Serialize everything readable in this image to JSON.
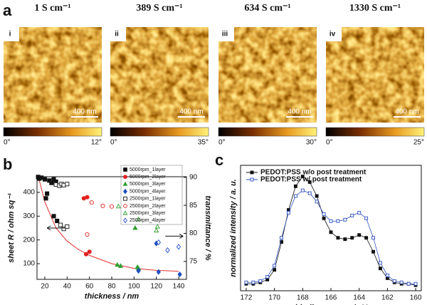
{
  "panel_a": {
    "label": "a",
    "images": [
      {
        "title": "1 S cm⁻¹",
        "tag": "i",
        "scale_bar": "400 nm",
        "colorbar": {
          "min": "0°",
          "max": "12°"
        }
      },
      {
        "title": "389 S cm⁻¹",
        "tag": "ii",
        "scale_bar": "400 nm",
        "colorbar": {
          "min": "0°",
          "max": "35°"
        }
      },
      {
        "title": "634 S cm⁻¹",
        "tag": "iii",
        "scale_bar": "400 nm",
        "colorbar": {
          "min": "0°",
          "max": "30°"
        }
      },
      {
        "title": "1330 S cm⁻¹",
        "tag": "iv",
        "scale_bar": "400 nm",
        "colorbar": {
          "min": "0°",
          "max": "25°"
        }
      }
    ]
  },
  "chart_data": [
    {
      "type": "scatter",
      "panel_label": "b",
      "x_label": "thickness / nm",
      "y_label": "sheet R / ohm sq⁻¹",
      "y2_label": "transmittance / %",
      "xlim": [
        13,
        147
      ],
      "xticks": [
        20,
        40,
        60,
        80,
        100,
        120,
        140
      ],
      "ylim": [
        34,
        466
      ],
      "yticks": [
        100,
        200,
        300,
        400
      ],
      "y2lim": [
        71.8,
        90.1
      ],
      "y2ticks": [
        75,
        80,
        85,
        90
      ],
      "series": [
        {
          "name": "5000rpm_1layer",
          "color": "#111111",
          "marker": "square",
          "filled": true,
          "x": [
            14,
            15,
            17,
            20,
            22,
            24,
            26,
            28,
            30,
            21,
            28,
            31
          ],
          "values": [
            465,
            458,
            462,
            455,
            395,
            450,
            440,
            455,
            445,
            375,
            300,
            280
          ]
        },
        {
          "name": "5000rpm_2layer",
          "color": "#e02020",
          "marker": "circle",
          "filled": true,
          "x": [
            55,
            58,
            57,
            60
          ],
          "values": [
            375,
            380,
            140,
            150
          ]
        },
        {
          "name": "5000rpm_3layer",
          "color": "#30a030",
          "marker": "triangle",
          "filled": true,
          "x": [
            85,
            88,
            101,
            103,
            104
          ],
          "values": [
            95,
            90,
            250,
            85,
            80
          ]
        },
        {
          "name": "5000rpm_4layer",
          "color": "#2050c0",
          "marker": "diamond",
          "filled": true,
          "x": [
            104,
            120,
            122,
            141
          ],
          "values": [
            70,
            185,
            65,
            55
          ]
        },
        {
          "name": "2500rpm_1layer",
          "color": "#111111",
          "marker": "square",
          "filled": false,
          "axis": "y2",
          "x": [
            30,
            33,
            35,
            37,
            40,
            34,
            37,
            40
          ],
          "values": [
            88.7,
            88.5,
            88.8,
            88.6,
            88.8,
            81.5,
            80.8,
            81.2
          ]
        },
        {
          "name": "2500rpm_2layer",
          "color": "#e02020",
          "marker": "circle",
          "filled": false,
          "axis": "y2",
          "x": [
            62,
            72,
            80,
            58
          ],
          "values": [
            85.5,
            84.9,
            84.8,
            79.8
          ]
        },
        {
          "name": "2500rpm_3layer",
          "color": "#30a030",
          "marker": "triangle",
          "filled": false,
          "axis": "y2",
          "x": [
            86,
            104,
            120,
            121
          ],
          "values": [
            84.8,
            82.5,
            80.5,
            81.2
          ]
        },
        {
          "name": "2500rpm_4layer",
          "color": "#2050c0",
          "marker": "diamond",
          "filled": false,
          "axis": "y2",
          "x": [
            122,
            130,
            140
          ],
          "values": [
            78.4,
            77.0,
            77.6
          ]
        }
      ],
      "fit": {
        "color": "#e03030",
        "x": [
          14,
          20,
          30,
          40,
          50,
          60,
          80,
          100,
          120,
          140
        ],
        "values": [
          470,
          360,
          250,
          195,
          160,
          135,
          100,
          80,
          72,
          68
        ]
      }
    },
    {
      "type": "line",
      "panel_label": "c",
      "x_label": "binding energy / eV",
      "y_label": "normalized intensity / a. u.",
      "xlim": [
        172.4,
        159.6
      ],
      "xticks": [
        172,
        170,
        168,
        166,
        164,
        162,
        160
      ],
      "ylim": [
        0,
        0.9
      ],
      "x": [
        172,
        171.5,
        171,
        170.5,
        170,
        169.5,
        169,
        168.5,
        168,
        167.5,
        167,
        166.5,
        166,
        165.5,
        165,
        164.5,
        164,
        163.5,
        163,
        162.5,
        162,
        161.5,
        161,
        160.5,
        160
      ],
      "series": [
        {
          "name": "PEDOT:PSS w/o post treatment",
          "color": "#111111",
          "marker": "square",
          "filled": true,
          "values": [
            0.05,
            0.05,
            0.06,
            0.08,
            0.15,
            0.35,
            0.58,
            0.75,
            0.82,
            0.78,
            0.68,
            0.52,
            0.42,
            0.38,
            0.37,
            0.38,
            0.4,
            0.38,
            0.28,
            0.16,
            0.09,
            0.06,
            0.05,
            0.05,
            0.04
          ]
        },
        {
          "name": "PEDOT:PSS w/ post treatment",
          "color": "#3050c0",
          "marker": "square",
          "filled": false,
          "values": [
            0.06,
            0.06,
            0.07,
            0.1,
            0.18,
            0.38,
            0.56,
            0.68,
            0.72,
            0.7,
            0.64,
            0.55,
            0.5,
            0.5,
            0.51,
            0.54,
            0.56,
            0.52,
            0.38,
            0.2,
            0.11,
            0.07,
            0.06,
            0.05,
            0.05
          ]
        }
      ]
    }
  ]
}
